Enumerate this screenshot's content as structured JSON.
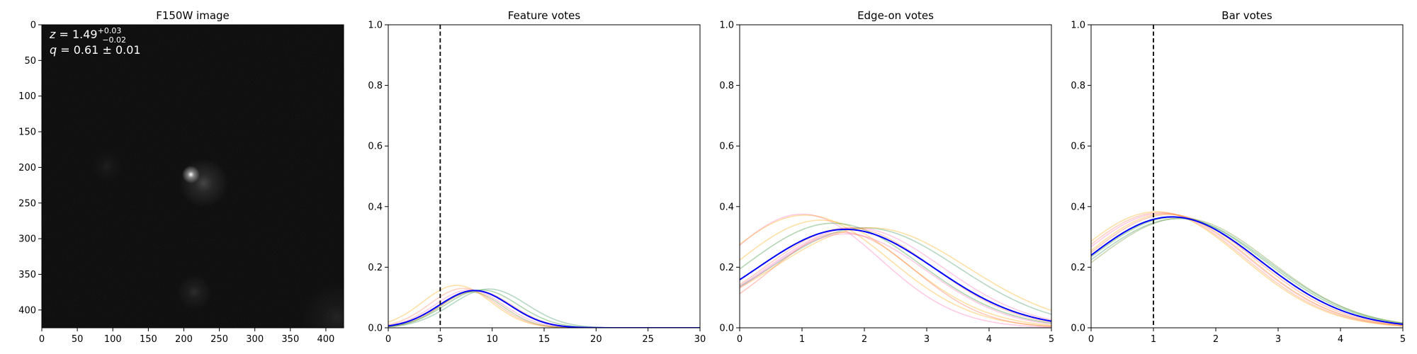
{
  "chart_data": [
    {
      "type": "image",
      "title": "F150W image",
      "xlim": [
        0,
        425
      ],
      "ylim": [
        425,
        0
      ],
      "x_ticks": [
        0,
        50,
        100,
        150,
        200,
        250,
        300,
        350,
        400
      ],
      "y_ticks": [
        0,
        50,
        100,
        150,
        200,
        250,
        300,
        350,
        400
      ],
      "annotation": {
        "z_line": {
          "prefix": "z = 1.49",
          "sup": "+0.03",
          "sub": "−0.02"
        },
        "q_line": "q = 0.61 ± 0.01"
      },
      "sources": [
        {
          "x": 210,
          "y": 210,
          "peak": 1.0,
          "sigma": 5
        },
        {
          "x": 228,
          "y": 222,
          "peak": 0.22,
          "sigma": 14
        },
        {
          "x": 215,
          "y": 375,
          "peak": 0.12,
          "sigma": 10
        },
        {
          "x": 92,
          "y": 198,
          "peak": 0.06,
          "sigma": 9
        },
        {
          "x": 415,
          "y": 410,
          "peak": 0.08,
          "sigma": 20
        }
      ]
    },
    {
      "type": "line",
      "title": "Feature votes",
      "xlim": [
        0,
        30
      ],
      "ylim": [
        0,
        1.0
      ],
      "x_ticks": [
        0,
        5,
        10,
        15,
        20,
        25,
        30
      ],
      "y_ticks": [
        0.0,
        0.2,
        0.4,
        0.6,
        0.8,
        1.0
      ],
      "vline": 5,
      "curve_model": "gaussian",
      "main_curve": {
        "mu": 8.3,
        "sigma": 3.4,
        "peak": 0.123,
        "color": "#0000ff"
      },
      "curves": [
        {
          "mu": 6.6,
          "sigma": 3.3,
          "peak": 0.14,
          "color": "#ffa500"
        },
        {
          "mu": 7.2,
          "sigma": 3.2,
          "peak": 0.13,
          "color": "#ff7f50"
        },
        {
          "mu": 7.8,
          "sigma": 3.3,
          "peak": 0.125,
          "color": "#ff69b4"
        },
        {
          "mu": 8.5,
          "sigma": 3.4,
          "peak": 0.122,
          "color": "#ff6347"
        },
        {
          "mu": 9.0,
          "sigma": 3.5,
          "peak": 0.125,
          "color": "#228b22"
        },
        {
          "mu": 9.7,
          "sigma": 3.6,
          "peak": 0.128,
          "color": "#2e8b57"
        },
        {
          "mu": 8.0,
          "sigma": 3.0,
          "peak": 0.118,
          "color": "#6b8e23"
        }
      ]
    },
    {
      "type": "line",
      "title": "Edge-on votes",
      "xlim": [
        0,
        5
      ],
      "ylim": [
        0,
        1.0
      ],
      "x_ticks": [
        0,
        1,
        2,
        3,
        4,
        5
      ],
      "y_ticks": [
        0.0,
        0.2,
        0.4,
        0.6,
        0.8,
        1.0
      ],
      "curve_model": "gaussian",
      "main_curve": {
        "mu": 1.7,
        "sigma": 1.42,
        "peak": 0.325,
        "color": "#0000ff"
      },
      "curves": [
        {
          "mu": 1.0,
          "sigma": 1.25,
          "peak": 0.375,
          "color": "#ff69b4"
        },
        {
          "mu": 1.05,
          "sigma": 1.35,
          "peak": 0.372,
          "color": "#ffa500"
        },
        {
          "mu": 1.3,
          "sigma": 1.35,
          "peak": 0.355,
          "color": "#ffa500"
        },
        {
          "mu": 1.5,
          "sigma": 1.4,
          "peak": 0.345,
          "color": "#228b22"
        },
        {
          "mu": 1.75,
          "sigma": 1.35,
          "peak": 0.33,
          "color": "#ff7f50"
        },
        {
          "mu": 1.85,
          "sigma": 1.4,
          "peak": 0.33,
          "color": "#ff69b4"
        },
        {
          "mu": 2.0,
          "sigma": 1.5,
          "peak": 0.33,
          "color": "#2e8b57"
        },
        {
          "mu": 1.65,
          "sigma": 1.15,
          "peak": 0.315,
          "color": "#ff6347"
        },
        {
          "mu": 2.1,
          "sigma": 1.55,
          "peak": 0.33,
          "color": "#ffa500"
        },
        {
          "mu": 1.7,
          "sigma": 1.3,
          "peak": 0.31,
          "color": "#ff69b4"
        }
      ]
    },
    {
      "type": "line",
      "title": "Bar votes",
      "xlim": [
        0,
        5
      ],
      "ylim": [
        0,
        1.0
      ],
      "x_ticks": [
        0,
        1,
        2,
        3,
        4,
        5
      ],
      "y_ticks": [
        0.0,
        0.2,
        0.4,
        0.6,
        0.8,
        1.0
      ],
      "vline": 1,
      "curve_model": "gaussian",
      "main_curve": {
        "mu": 1.3,
        "sigma": 1.41,
        "peak": 0.366,
        "color": "#0000ff"
      },
      "curves": [
        {
          "mu": 1.05,
          "sigma": 1.37,
          "peak": 0.383,
          "color": "#ffa500"
        },
        {
          "mu": 1.1,
          "sigma": 1.37,
          "peak": 0.38,
          "color": "#ff7f50"
        },
        {
          "mu": 1.15,
          "sigma": 1.38,
          "peak": 0.378,
          "color": "#ff69b4"
        },
        {
          "mu": 1.25,
          "sigma": 1.38,
          "peak": 0.374,
          "color": "#ff6347"
        },
        {
          "mu": 1.35,
          "sigma": 1.43,
          "peak": 0.365,
          "color": "#228b22"
        },
        {
          "mu": 1.4,
          "sigma": 1.44,
          "peak": 0.36,
          "color": "#2e8b57"
        },
        {
          "mu": 1.45,
          "sigma": 1.42,
          "peak": 0.362,
          "color": "#6b8e23"
        },
        {
          "mu": 1.2,
          "sigma": 1.36,
          "peak": 0.376,
          "color": "#ffa500"
        }
      ]
    }
  ]
}
